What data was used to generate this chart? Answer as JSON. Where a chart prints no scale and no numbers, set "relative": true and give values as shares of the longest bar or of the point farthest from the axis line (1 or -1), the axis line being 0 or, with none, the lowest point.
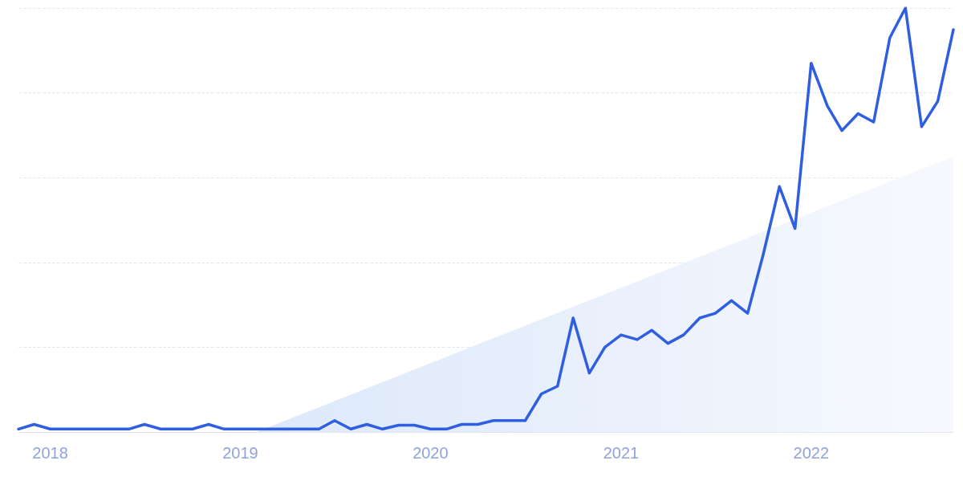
{
  "chart_data": {
    "type": "line",
    "relative": true,
    "grid": "y",
    "marker": "none",
    "line_style": "solid",
    "xlim": [
      "2017-11",
      "2022-10"
    ],
    "xticks": [
      {
        "value": "2018-01",
        "label": "2018"
      },
      {
        "value": "2019-01",
        "label": "2019"
      },
      {
        "value": "2020-01",
        "label": "2020"
      },
      {
        "value": "2021-01",
        "label": "2021"
      },
      {
        "value": "2022-01",
        "label": "2022"
      }
    ],
    "x": [
      "2017-11",
      "2017-12",
      "2018-01",
      "2018-02",
      "2018-03",
      "2018-04",
      "2018-05",
      "2018-06",
      "2018-07",
      "2018-08",
      "2018-09",
      "2018-10",
      "2018-11",
      "2018-12",
      "2019-01",
      "2019-02",
      "2019-03",
      "2019-04",
      "2019-05",
      "2019-06",
      "2019-07",
      "2019-08",
      "2019-09",
      "2019-10",
      "2019-11",
      "2019-12",
      "2020-01",
      "2020-02",
      "2020-03",
      "2020-04",
      "2020-05",
      "2020-06",
      "2020-07",
      "2020-08",
      "2020-09",
      "2020-10",
      "2020-11",
      "2020-12",
      "2021-01",
      "2021-02",
      "2021-03",
      "2021-04",
      "2021-05",
      "2021-06",
      "2021-07",
      "2021-08",
      "2021-09",
      "2021-10",
      "2021-11",
      "2021-12",
      "2022-01",
      "2022-02",
      "2022-03",
      "2022-04",
      "2022-05",
      "2022-06",
      "2022-07",
      "2022-08",
      "2022-09",
      "2022-10"
    ],
    "series": [
      {
        "type": "area",
        "color": "#dce8fa",
        "x": [
          "2019-02",
          "2022-10"
        ],
        "values": [
          0,
          0.65
        ]
      },
      {
        "color": "#2f5fe0",
        "values": [
          0.007,
          0.018,
          0.007,
          0.007,
          0.007,
          0.007,
          0.007,
          0.007,
          0.018,
          0.007,
          0.007,
          0.007,
          0.018,
          0.007,
          0.007,
          0.007,
          0.007,
          0.007,
          0.007,
          0.007,
          0.027,
          0.007,
          0.018,
          0.007,
          0.016,
          0.016,
          0.007,
          0.007,
          0.018,
          0.018,
          0.027,
          0.027,
          0.027,
          0.09,
          0.108,
          0.269,
          0.139,
          0.2,
          0.229,
          0.218,
          0.24,
          0.209,
          0.229,
          0.269,
          0.28,
          0.31,
          0.28,
          0.419,
          0.579,
          0.48,
          0.87,
          0.769,
          0.711,
          0.751,
          0.731,
          0.93,
          1,
          0.72,
          0.78,
          0.949
        ]
      }
    ]
  }
}
